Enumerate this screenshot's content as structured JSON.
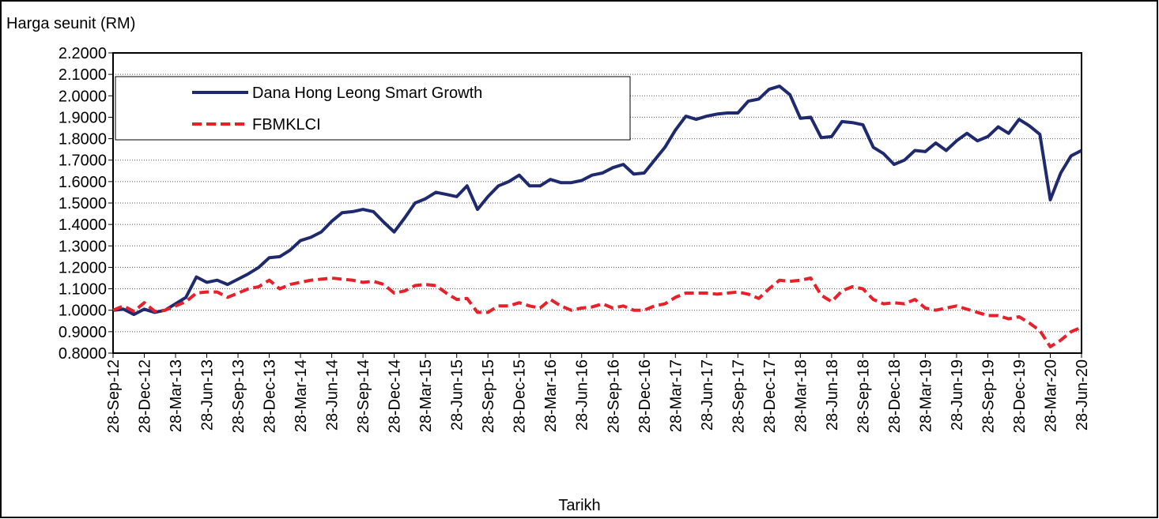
{
  "chart_data": {
    "type": "line",
    "y_axis_label": "Harga seunit (RM)",
    "x_axis_label": "Tarikh",
    "categories": [
      "28-Sep-12",
      null,
      null,
      "28-Dec-12",
      null,
      null,
      "28-Mar-13",
      null,
      null,
      "28-Jun-13",
      null,
      null,
      "28-Sep-13",
      null,
      null,
      "28-Dec-13",
      null,
      null,
      "28-Mar-14",
      null,
      null,
      "28-Jun-14",
      null,
      null,
      "28-Sep-14",
      null,
      null,
      "28-Dec-14",
      null,
      null,
      "28-Mar-15",
      null,
      null,
      "28-Jun-15",
      null,
      null,
      "28-Sep-15",
      null,
      null,
      "28-Dec-15",
      null,
      null,
      "28-Mar-16",
      null,
      null,
      "28-Jun-16",
      null,
      null,
      "28-Sep-16",
      null,
      null,
      "28-Dec-16",
      null,
      null,
      "28-Mar-17",
      null,
      null,
      "28-Jun-17",
      null,
      null,
      "28-Sep-17",
      null,
      null,
      "28-Dec-17",
      null,
      null,
      "28-Mar-18",
      null,
      null,
      "28-Jun-18",
      null,
      null,
      "28-Sep-18",
      null,
      null,
      "28-Dec-18",
      null,
      null,
      "28-Mar-19",
      null,
      null,
      "28-Jun-19",
      null,
      null,
      "28-Sep-19",
      null,
      null,
      "28-Dec-19",
      null,
      null,
      "28-Mar-20",
      null,
      null,
      "28-Jun-20"
    ],
    "series": [
      {
        "name": "Dana Hong Leong Smart Growth",
        "color": "#1f2a6e",
        "dash": "solid",
        "values": [
          1.0,
          1.005,
          0.98,
          1.005,
          0.99,
          1.0,
          1.03,
          1.06,
          1.155,
          1.13,
          1.14,
          1.12,
          1.145,
          1.17,
          1.2,
          1.245,
          1.25,
          1.28,
          1.325,
          1.34,
          1.365,
          1.415,
          1.455,
          1.46,
          1.47,
          1.46,
          1.41,
          1.365,
          1.43,
          1.5,
          1.52,
          1.55,
          1.54,
          1.53,
          1.58,
          1.47,
          1.53,
          1.58,
          1.6,
          1.63,
          1.58,
          1.58,
          1.61,
          1.595,
          1.595,
          1.605,
          1.63,
          1.64,
          1.665,
          1.68,
          1.635,
          1.64,
          1.7,
          1.76,
          1.84,
          1.905,
          1.89,
          1.905,
          1.915,
          1.92,
          1.92,
          1.975,
          1.985,
          2.03,
          2.045,
          2.005,
          1.895,
          1.9,
          1.805,
          1.81,
          1.88,
          1.875,
          1.865,
          1.76,
          1.73,
          1.68,
          1.7,
          1.745,
          1.74,
          1.78,
          1.745,
          1.79,
          1.825,
          1.79,
          1.81,
          1.855,
          1.825,
          1.89,
          1.86,
          1.82,
          1.515,
          1.64,
          1.72,
          1.745
        ]
      },
      {
        "name": "FBMKLCI",
        "color": "#e8202a",
        "dash": "dashed",
        "values": [
          1.0,
          1.02,
          0.995,
          1.035,
          0.995,
          1.0,
          1.02,
          1.04,
          1.08,
          1.085,
          1.085,
          1.06,
          1.08,
          1.1,
          1.11,
          1.14,
          1.1,
          1.12,
          1.13,
          1.14,
          1.145,
          1.15,
          1.145,
          1.14,
          1.13,
          1.135,
          1.12,
          1.08,
          1.09,
          1.115,
          1.12,
          1.115,
          1.08,
          1.05,
          1.055,
          0.99,
          0.99,
          1.02,
          1.02,
          1.035,
          1.02,
          1.01,
          1.05,
          1.02,
          1.0,
          1.01,
          1.015,
          1.03,
          1.01,
          1.02,
          1.0,
          1.0,
          1.02,
          1.03,
          1.06,
          1.08,
          1.08,
          1.08,
          1.075,
          1.08,
          1.085,
          1.075,
          1.055,
          1.1,
          1.14,
          1.135,
          1.14,
          1.15,
          1.07,
          1.04,
          1.09,
          1.11,
          1.1,
          1.05,
          1.03,
          1.035,
          1.03,
          1.05,
          1.01,
          1.0,
          1.01,
          1.02,
          1.005,
          0.99,
          0.975,
          0.975,
          0.96,
          0.97,
          0.94,
          0.905,
          0.83,
          0.86,
          0.9,
          0.92
        ]
      }
    ],
    "ylim": [
      0.8,
      2.2
    ],
    "yticks": [
      {
        "value": 0.8,
        "label": "0.8000"
      },
      {
        "value": 0.9,
        "label": "0.9000"
      },
      {
        "value": 1.0,
        "label": "1.0000"
      },
      {
        "value": 1.1,
        "label": "1.1000"
      },
      {
        "value": 1.2,
        "label": "1.2000"
      },
      {
        "value": 1.3,
        "label": "1.3000"
      },
      {
        "value": 1.4,
        "label": "1.4000"
      },
      {
        "value": 1.5,
        "label": "1.5000"
      },
      {
        "value": 1.6,
        "label": "1.6000"
      },
      {
        "value": 1.7,
        "label": "1.7000"
      },
      {
        "value": 1.8,
        "label": "1.8000"
      },
      {
        "value": 1.9,
        "label": "1.9000"
      },
      {
        "value": 2.0,
        "label": "2.0000"
      },
      {
        "value": 2.1,
        "label": "2.1000"
      },
      {
        "value": 2.2,
        "label": "2.2000"
      }
    ],
    "grid": true,
    "legend": "upper left"
  }
}
